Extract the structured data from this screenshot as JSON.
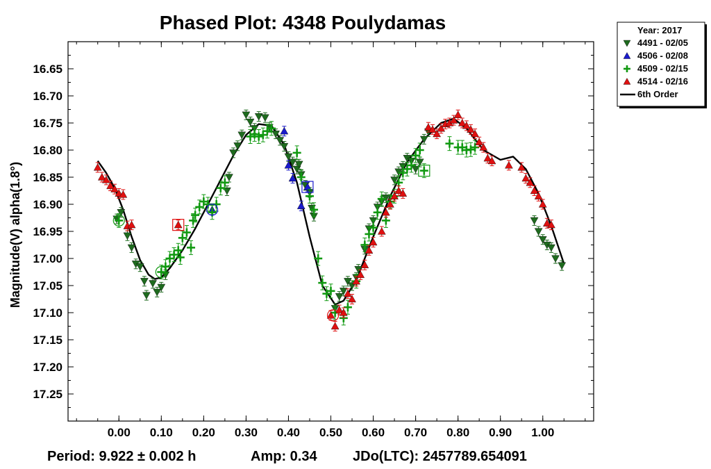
{
  "chart_data": {
    "type": "scatter",
    "title": "Phased Plot: 4348 Poulydamas",
    "xlabel": "",
    "ylabel": "Magnitude(V) alpha(1.8°)",
    "xlim": [
      -0.12,
      1.12
    ],
    "ylim": [
      17.3,
      16.6
    ],
    "y_inverted": true,
    "grid": false,
    "legend_position": "top-right",
    "legend_title": "Year: 2017",
    "x_ticks": [
      "0.00",
      "0.10",
      "0.20",
      "0.30",
      "0.40",
      "0.50",
      "0.60",
      "0.70",
      "0.80",
      "0.90",
      "1.00"
    ],
    "y_ticks": [
      "16.65",
      "16.70",
      "16.75",
      "16.80",
      "16.85",
      "16.90",
      "16.95",
      "17.00",
      "17.05",
      "17.10",
      "17.15",
      "17.20",
      "17.25"
    ],
    "series": [
      {
        "name": "4491 - 02/05",
        "marker": "triangle-down",
        "color": "#1e6b1e",
        "points": [
          [
            -0.005,
            16.927
          ],
          [
            0.005,
            16.915
          ],
          [
            0.02,
            16.958
          ],
          [
            0.03,
            16.98
          ],
          [
            0.04,
            17.01
          ],
          [
            0.05,
            17.015
          ],
          [
            0.06,
            17.042
          ],
          [
            0.065,
            17.068
          ],
          [
            0.08,
            17.046
          ],
          [
            0.09,
            17.062
          ],
          [
            0.1,
            17.053
          ],
          [
            0.11,
            17.03
          ],
          [
            0.255,
            16.875
          ],
          [
            0.26,
            16.85
          ],
          [
            0.27,
            16.805
          ],
          [
            0.28,
            16.792
          ],
          [
            0.29,
            16.772
          ],
          [
            0.3,
            16.735
          ],
          [
            0.31,
            16.748
          ],
          [
            0.32,
            16.76
          ],
          [
            0.33,
            16.738
          ],
          [
            0.345,
            16.74
          ],
          [
            0.355,
            16.758
          ],
          [
            0.37,
            16.77
          ],
          [
            0.38,
            16.782
          ],
          [
            0.39,
            16.793
          ],
          [
            0.4,
            16.812
          ],
          [
            0.41,
            16.822
          ],
          [
            0.42,
            16.835
          ],
          [
            0.425,
            16.826
          ],
          [
            0.43,
            16.845
          ],
          [
            0.44,
            16.865
          ],
          [
            0.45,
            16.878
          ],
          [
            0.455,
            16.907
          ],
          [
            0.46,
            16.922
          ],
          [
            0.51,
            17.092
          ],
          [
            0.52,
            17.07
          ],
          [
            0.53,
            17.06
          ],
          [
            0.54,
            17.042
          ],
          [
            0.55,
            17.05
          ],
          [
            0.56,
            17.035
          ],
          [
            0.565,
            17.02
          ],
          [
            0.58,
            16.983
          ],
          [
            0.59,
            16.945
          ],
          [
            0.6,
            16.93
          ],
          [
            0.61,
            16.905
          ],
          [
            0.62,
            16.895
          ],
          [
            0.63,
            16.888
          ],
          [
            0.65,
            16.855
          ],
          [
            0.66,
            16.84
          ],
          [
            0.67,
            16.83
          ],
          [
            0.68,
            16.815
          ],
          [
            0.69,
            16.82
          ],
          [
            0.7,
            16.835
          ],
          [
            0.71,
            16.822
          ],
          [
            0.72,
            16.78
          ],
          [
            0.73,
            16.766
          ],
          [
            0.98,
            16.93
          ],
          [
            0.99,
            16.95
          ],
          [
            1.0,
            16.965
          ],
          [
            1.01,
            16.975
          ],
          [
            1.02,
            16.98
          ],
          [
            1.03,
            17.0
          ],
          [
            1.045,
            17.013
          ]
        ]
      },
      {
        "name": "4506 - 02/08",
        "marker": "triangle-up",
        "color": "#1a1acc",
        "points": [
          [
            0.22,
            16.91
          ],
          [
            0.39,
            16.765
          ],
          [
            0.4,
            16.828
          ],
          [
            0.41,
            16.852
          ],
          [
            0.43,
            16.903
          ],
          [
            0.445,
            16.868
          ]
        ]
      },
      {
        "name": "4509 - 02/15",
        "marker": "plus",
        "color": "#119911",
        "points": [
          [
            0.0,
            16.93
          ],
          [
            0.1,
            17.025
          ],
          [
            0.11,
            17.015
          ],
          [
            0.12,
            17.0
          ],
          [
            0.13,
            16.993
          ],
          [
            0.14,
            16.985
          ],
          [
            0.145,
            16.998
          ],
          [
            0.15,
            16.962
          ],
          [
            0.16,
            16.952
          ],
          [
            0.17,
            16.98
          ],
          [
            0.175,
            16.93
          ],
          [
            0.18,
            16.92
          ],
          [
            0.19,
            16.905
          ],
          [
            0.2,
            16.895
          ],
          [
            0.21,
            16.9
          ],
          [
            0.22,
            16.915
          ],
          [
            0.23,
            16.9
          ],
          [
            0.24,
            16.87
          ],
          [
            0.25,
            16.86
          ],
          [
            0.31,
            16.775
          ],
          [
            0.32,
            16.771
          ],
          [
            0.33,
            16.775
          ],
          [
            0.34,
            16.772
          ],
          [
            0.35,
            16.765
          ],
          [
            0.36,
            16.76
          ],
          [
            0.42,
            16.805
          ],
          [
            0.43,
            16.85
          ],
          [
            0.45,
            16.885
          ],
          [
            0.46,
            16.91
          ],
          [
            0.47,
            17.0
          ],
          [
            0.48,
            17.045
          ],
          [
            0.49,
            17.065
          ],
          [
            0.5,
            17.06
          ],
          [
            0.51,
            17.1
          ],
          [
            0.53,
            17.11
          ],
          [
            0.54,
            17.09
          ],
          [
            0.56,
            17.042
          ],
          [
            0.58,
            16.975
          ],
          [
            0.59,
            16.955
          ],
          [
            0.6,
            16.943
          ],
          [
            0.61,
            16.915
          ],
          [
            0.62,
            16.89
          ],
          [
            0.63,
            16.93
          ],
          [
            0.64,
            16.895
          ],
          [
            0.65,
            16.885
          ],
          [
            0.66,
            16.86
          ],
          [
            0.67,
            16.842
          ],
          [
            0.68,
            16.835
          ],
          [
            0.69,
            16.828
          ],
          [
            0.7,
            16.81
          ],
          [
            0.71,
            16.8
          ],
          [
            0.72,
            16.838
          ],
          [
            0.78,
            16.788
          ],
          [
            0.8,
            16.795
          ],
          [
            0.81,
            16.795
          ],
          [
            0.82,
            16.8
          ],
          [
            0.83,
            16.799
          ],
          [
            0.84,
            16.795
          ]
        ]
      },
      {
        "name": "4514 - 02/16",
        "marker": "triangle-up",
        "color": "#e01010",
        "points": [
          [
            -0.05,
            16.832
          ],
          [
            -0.04,
            16.85
          ],
          [
            -0.03,
            16.855
          ],
          [
            -0.02,
            16.866
          ],
          [
            -0.01,
            16.872
          ],
          [
            0.0,
            16.88
          ],
          [
            0.01,
            16.882
          ],
          [
            0.02,
            16.94
          ],
          [
            0.03,
            16.938
          ],
          [
            0.14,
            16.938
          ],
          [
            0.5,
            17.105
          ],
          [
            0.51,
            17.125
          ],
          [
            0.52,
            17.095
          ],
          [
            0.53,
            17.1
          ],
          [
            0.54,
            17.065
          ],
          [
            0.55,
            17.075
          ],
          [
            0.56,
            17.042
          ],
          [
            0.57,
            17.03
          ],
          [
            0.58,
            17.012
          ],
          [
            0.59,
            16.985
          ],
          [
            0.6,
            16.97
          ],
          [
            0.62,
            16.95
          ],
          [
            0.63,
            16.915
          ],
          [
            0.64,
            16.9
          ],
          [
            0.65,
            16.885
          ],
          [
            0.66,
            16.875
          ],
          [
            0.67,
            16.88
          ],
          [
            0.73,
            16.758
          ],
          [
            0.74,
            16.762
          ],
          [
            0.75,
            16.77
          ],
          [
            0.76,
            16.76
          ],
          [
            0.77,
            16.752
          ],
          [
            0.78,
            16.75
          ],
          [
            0.79,
            16.745
          ],
          [
            0.8,
            16.735
          ],
          [
            0.81,
            16.75
          ],
          [
            0.82,
            16.755
          ],
          [
            0.83,
            16.762
          ],
          [
            0.84,
            16.77
          ],
          [
            0.85,
            16.785
          ],
          [
            0.86,
            16.795
          ],
          [
            0.87,
            16.815
          ],
          [
            0.88,
            16.82
          ],
          [
            0.92,
            16.828
          ],
          [
            0.95,
            16.832
          ],
          [
            0.96,
            16.852
          ],
          [
            0.97,
            16.86
          ],
          [
            0.98,
            16.875
          ],
          [
            0.99,
            16.885
          ],
          [
            1.0,
            16.9
          ],
          [
            1.01,
            16.935
          ],
          [
            1.02,
            16.938
          ]
        ]
      },
      {
        "name": "6th Order",
        "type": "line",
        "color": "#000000",
        "points": [
          [
            -0.05,
            16.82
          ],
          [
            -0.03,
            16.842
          ],
          [
            -0.01,
            16.87
          ],
          [
            0.01,
            16.91
          ],
          [
            0.03,
            16.96
          ],
          [
            0.05,
            17.003
          ],
          [
            0.07,
            17.03
          ],
          [
            0.085,
            17.038
          ],
          [
            0.1,
            17.035
          ],
          [
            0.12,
            17.018
          ],
          [
            0.15,
            16.985
          ],
          [
            0.18,
            16.945
          ],
          [
            0.21,
            16.9
          ],
          [
            0.24,
            16.855
          ],
          [
            0.27,
            16.81
          ],
          [
            0.3,
            16.772
          ],
          [
            0.33,
            16.752
          ],
          [
            0.36,
            16.755
          ],
          [
            0.39,
            16.79
          ],
          [
            0.42,
            16.86
          ],
          [
            0.45,
            16.96
          ],
          [
            0.48,
            17.05
          ],
          [
            0.51,
            17.085
          ],
          [
            0.53,
            17.078
          ],
          [
            0.56,
            17.04
          ],
          [
            0.6,
            16.96
          ],
          [
            0.64,
            16.885
          ],
          [
            0.68,
            16.822
          ],
          [
            0.72,
            16.78
          ],
          [
            0.76,
            16.75
          ],
          [
            0.79,
            16.742
          ],
          [
            0.82,
            16.76
          ],
          [
            0.86,
            16.8
          ],
          [
            0.9,
            16.818
          ],
          [
            0.93,
            16.812
          ],
          [
            0.96,
            16.835
          ],
          [
            0.99,
            16.88
          ],
          [
            1.02,
            16.94
          ],
          [
            1.05,
            17.01
          ]
        ]
      }
    ],
    "highlighted_points": [
      {
        "shape": "circle",
        "color": "#119911",
        "x": 0.0,
        "y": 16.93
      },
      {
        "shape": "circle",
        "color": "#119911",
        "x": 0.1,
        "y": 17.025
      },
      {
        "shape": "square",
        "color": "#e01010",
        "x": 0.14,
        "y": 16.938
      },
      {
        "shape": "circle",
        "color": "#1a1acc",
        "x": 0.22,
        "y": 16.91
      },
      {
        "shape": "square",
        "color": "#1a1acc",
        "x": 0.445,
        "y": 16.868
      },
      {
        "shape": "circle",
        "color": "#e01010",
        "x": 0.505,
        "y": 17.105
      },
      {
        "shape": "square",
        "color": "#119911",
        "x": 0.72,
        "y": 16.838
      }
    ],
    "footer": {
      "period": "Period: 9.922 ± 0.002 h",
      "amp": "Amp: 0.34",
      "jdo": "JDo(LTC): 2457789.654091"
    }
  }
}
